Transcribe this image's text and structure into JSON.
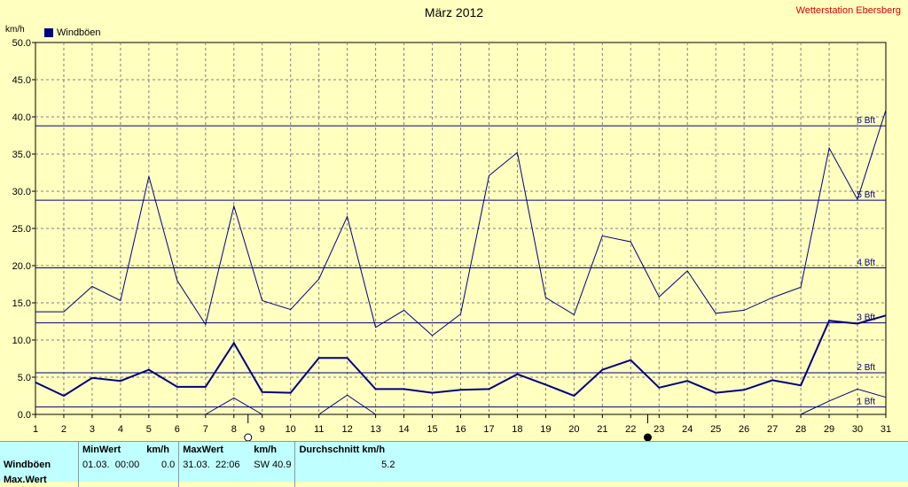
{
  "header": {
    "title": "März 2012",
    "station": "Wetterstation Ebersberg",
    "unit": "km/h"
  },
  "legend": {
    "label": "Windböen",
    "color": "#000080"
  },
  "chart_data": {
    "type": "line",
    "title": "März 2012",
    "ylabel": "km/h",
    "xlabel": "",
    "ylim": [
      0,
      50
    ],
    "xlim": [
      1,
      31
    ],
    "y_ticks": [
      "0.0",
      "5.0",
      "10.0",
      "15.0",
      "20.0",
      "25.0",
      "30.0",
      "35.0",
      "40.0",
      "45.0",
      "50.0"
    ],
    "x": [
      1,
      2,
      3,
      4,
      5,
      6,
      7,
      8,
      9,
      10,
      11,
      12,
      13,
      14,
      15,
      16,
      17,
      18,
      19,
      20,
      21,
      22,
      23,
      24,
      25,
      26,
      27,
      28,
      29,
      30,
      31
    ],
    "grid": true,
    "series": [
      {
        "name": "Windböen",
        "role": "max",
        "color": "#000080",
        "width": 1,
        "values": [
          13.8,
          13.8,
          17.2,
          15.3,
          32.0,
          18.0,
          12.1,
          28.0,
          15.3,
          14.1,
          18.2,
          26.6,
          11.7,
          14.0,
          10.6,
          13.5,
          32.1,
          35.2,
          15.7,
          13.4,
          24.0,
          23.2,
          15.8,
          19.3,
          13.6,
          14.0,
          15.7,
          17.1,
          35.8,
          28.9,
          40.9
        ]
      },
      {
        "role": "mean",
        "color": "#000080",
        "width": 2,
        "values": [
          4.3,
          2.5,
          4.9,
          4.5,
          6.0,
          3.7,
          3.7,
          9.6,
          3.0,
          2.9,
          7.6,
          7.6,
          3.4,
          3.4,
          2.9,
          3.3,
          3.4,
          5.4,
          4.0,
          2.5,
          6.0,
          7.3,
          3.6,
          4.5,
          2.9,
          3.3,
          4.6,
          3.9,
          12.6,
          12.2,
          13.3
        ]
      },
      {
        "role": "min",
        "color": "#000080",
        "width": 1,
        "values": [
          null,
          null,
          null,
          null,
          null,
          null,
          0.0,
          2.2,
          0.0,
          null,
          0.0,
          2.6,
          0.0,
          null,
          null,
          null,
          null,
          null,
          null,
          null,
          null,
          null,
          null,
          null,
          null,
          null,
          null,
          0.0,
          1.8,
          3.4,
          2.3
        ]
      }
    ],
    "reference_lines": [
      {
        "label": "1 Bft",
        "value": 1
      },
      {
        "label": "2 Bft",
        "value": 5.6
      },
      {
        "label": "3 Bft",
        "value": 12.3
      },
      {
        "label": "4 Bft",
        "value": 19.7
      },
      {
        "label": "5 Bft",
        "value": 28.8
      },
      {
        "label": "6 Bft",
        "value": 38.8
      }
    ],
    "markers": [
      {
        "type": "full-moon",
        "x": 8.5
      },
      {
        "type": "new-moon",
        "x": 22.6
      }
    ]
  },
  "stats": {
    "headers": {
      "min": "MinWert",
      "min_unit": "km/h",
      "max": "MaxWert",
      "max_unit": "km/h",
      "avg": "Durchschnitt km/h"
    },
    "rows": [
      {
        "label": "Windböen",
        "min_date": "01.03.",
        "min_time": "00:00",
        "min_val": "0.0",
        "max_date": "31.03.",
        "max_time": "22:06",
        "max_dir": "SW",
        "max_val": "40.9",
        "avg": "5.2"
      },
      {
        "label": "Max.Wert"
      }
    ]
  }
}
